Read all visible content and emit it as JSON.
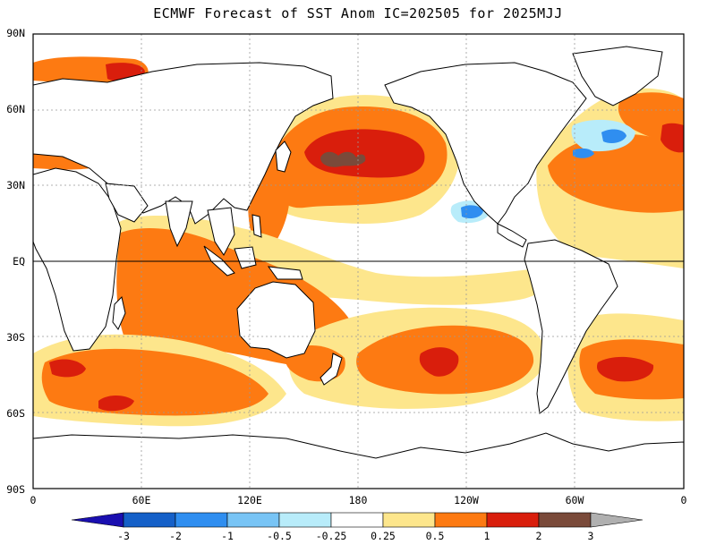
{
  "title": "ECMWF Forecast of SST Anom IC=202505 for 2025MJJ",
  "y_axis_labels": [
    "90N",
    "60N",
    "30N",
    "EQ",
    "30S",
    "60S",
    "90S"
  ],
  "x_axis_labels": [
    "0",
    "60E",
    "120E",
    "180",
    "120W",
    "60W",
    "0"
  ],
  "colorbar": {
    "labels": [
      "-3",
      "-2",
      "-1",
      "-0.5",
      "-0.25",
      "0.25",
      "0.5",
      "1",
      "2",
      "3"
    ],
    "colors": [
      "#1a0fb0",
      "#1560c8",
      "#2f8ef0",
      "#78c4f5",
      "#b8ecfa",
      "#ffffff",
      "#fde68c",
      "#fd7a12",
      "#d91e0c",
      "#7a4a3a",
      "#b0b0b0"
    ]
  },
  "map_colors": {
    "land": "#ffffff",
    "coast": "#000000",
    "ocean_neutral": "#ffffff",
    "weak_warm": "#fde68c",
    "warm": "#fd7a12",
    "strong_warm": "#d91e0c",
    "very_strong_warm": "#7a4a3a",
    "weak_cool": "#b8ecfa",
    "cool": "#2f8ef0"
  }
}
